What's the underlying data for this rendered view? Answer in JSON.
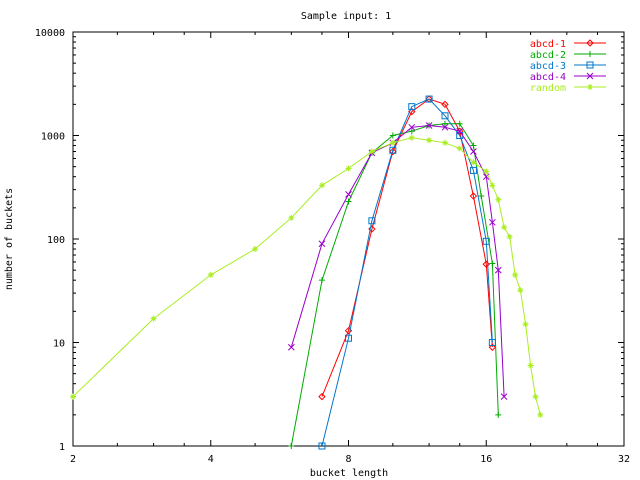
{
  "chart_data": {
    "type": "line",
    "title": "Sample input: 1",
    "xlabel": "bucket length",
    "ylabel": "number of buckets",
    "x_scale": "log2",
    "y_scale": "log10",
    "xlim": [
      2,
      32
    ],
    "ylim": [
      1,
      10000
    ],
    "x_ticks": [
      2,
      4,
      8,
      16,
      32
    ],
    "y_ticks": [
      1,
      10,
      100,
      1000,
      10000
    ],
    "grid": false,
    "legend_position": "top-right",
    "series": [
      {
        "name": "abcd-1",
        "color": "#ff0000",
        "marker": "diamond",
        "x": [
          7,
          8,
          9,
          10,
          11,
          12,
          13,
          14,
          15,
          16,
          16.5
        ],
        "y": [
          3,
          13,
          125,
          700,
          1700,
          2250,
          2000,
          1100,
          260,
          57,
          9
        ]
      },
      {
        "name": "abcd-2",
        "color": "#00aa00",
        "marker": "plus",
        "x": [
          6,
          7,
          8,
          9,
          10,
          11,
          12,
          13,
          14,
          15,
          15.6,
          16.5,
          17
        ],
        "y": [
          1,
          40,
          230,
          680,
          1000,
          1100,
          1250,
          1300,
          1300,
          800,
          260,
          58,
          2
        ]
      },
      {
        "name": "abcd-3",
        "color": "#0077cc",
        "marker": "square",
        "x": [
          7,
          8,
          9,
          10,
          11,
          12,
          13,
          14,
          15,
          16,
          16.5
        ],
        "y": [
          1,
          11,
          150,
          720,
          1900,
          2250,
          1550,
          1000,
          460,
          95,
          10
        ]
      },
      {
        "name": "abcd-4",
        "color": "#9900cc",
        "marker": "cross",
        "x": [
          6,
          7,
          8,
          9,
          10,
          11,
          12,
          13,
          14,
          15,
          16,
          16.5,
          17,
          17.5
        ],
        "y": [
          9,
          90,
          270,
          680,
          850,
          1200,
          1250,
          1200,
          1100,
          700,
          400,
          145,
          50,
          3
        ]
      },
      {
        "name": "random",
        "color": "#aaee22",
        "marker": "star",
        "x": [
          2,
          3,
          4,
          5,
          6,
          7,
          8,
          9,
          10,
          11,
          12,
          13,
          14,
          15,
          16,
          16.5,
          17,
          17.5,
          18,
          18.5,
          19,
          19.5,
          20,
          20.5,
          21
        ],
        "y": [
          3,
          17,
          45,
          80,
          160,
          330,
          480,
          700,
          850,
          950,
          900,
          850,
          750,
          550,
          450,
          330,
          240,
          130,
          105,
          45,
          32,
          15,
          6,
          3,
          2
        ]
      }
    ]
  }
}
